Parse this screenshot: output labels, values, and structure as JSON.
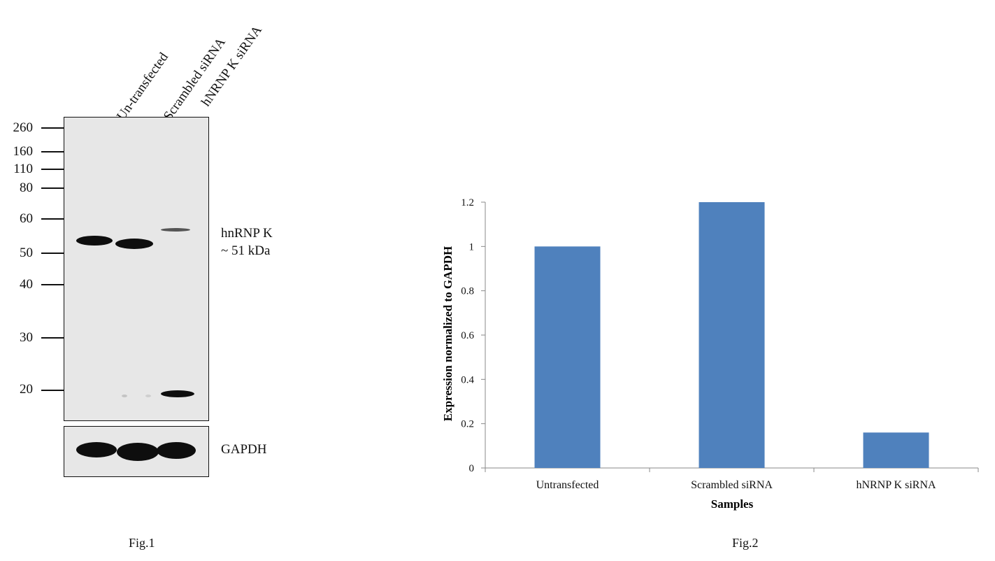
{
  "blot": {
    "lanes": [
      "Un-transfected",
      "Scrambled siRNA",
      "hNRNP K siRNA"
    ],
    "markers": [
      "260",
      "160",
      "110",
      "80",
      "60",
      "50",
      "40",
      "30",
      "20"
    ],
    "target_label": "hnRNP K",
    "target_size": "~ 51 kDa",
    "control_label": "GAPDH",
    "figure_label": "Fig.1"
  },
  "chart": {
    "figure_label": "Fig.2"
  },
  "chart_data": {
    "type": "bar",
    "categories": [
      "Untransfected",
      "Scrambled siRNA",
      "hNRNP K siRNA"
    ],
    "values": [
      1.0,
      1.2,
      0.16
    ],
    "xlabel": "Samples",
    "ylabel": "Expression normalized to GAPDH",
    "ylim": [
      0,
      1.2
    ],
    "yticks": [
      "0",
      "0.2",
      "0.4",
      "0.6",
      "0.8",
      "1",
      "1.2"
    ],
    "yticks_values": [
      0,
      0.2,
      0.4,
      0.6,
      0.8,
      1.0,
      1.2
    ],
    "color": "#4f81bd",
    "grid": false
  }
}
